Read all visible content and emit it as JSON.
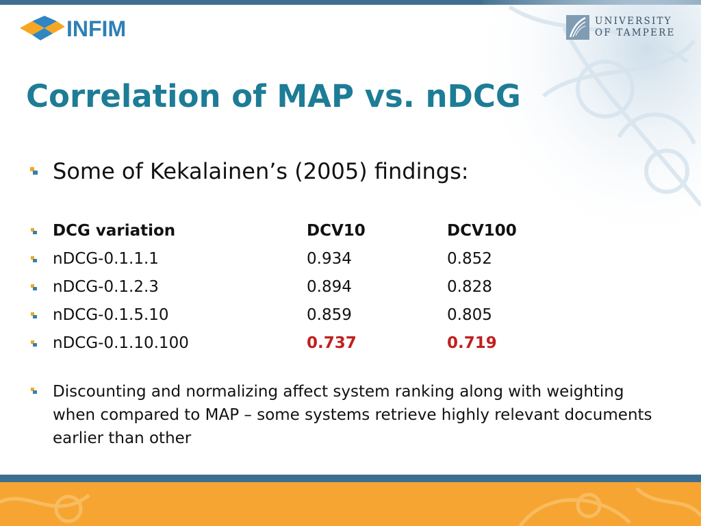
{
  "slide": {
    "title": "Correlation of MAP vs. nDCG",
    "logo_left": "INFIM",
    "logo_right": {
      "line1": "UNIVERSITY",
      "line2": "OF TAMPERE"
    },
    "lead_bullet": "Some of Kekalainen’s (2005) findings:",
    "table": {
      "headers": [
        "DCG variation",
        "DCV10",
        "DCV100"
      ],
      "rows": [
        [
          "nDCG-0.1.1.1",
          "0.934",
          "0.852"
        ],
        [
          "nDCG-0.1.2.3",
          "0.894",
          "0.828"
        ],
        [
          "nDCG-0.1.5.10",
          "0.859",
          "0.805"
        ],
        [
          "nDCG-0.1.10.100",
          "0.737",
          "0.719"
        ]
      ]
    },
    "paragraph": "Discounting and normalizing affect system ranking along with weighting when compared to MAP – some systems retrieve highly relevant documents earlier than other"
  },
  "colors": {
    "title": "#1d7c96",
    "highlight": "#c0201f",
    "bullet_orange": "#f5a623",
    "bullet_blue": "#3b7ea9",
    "top_bar": "#3f6d8f",
    "footer_orange": "#f7a532"
  },
  "icons": {
    "left_logo": "infim-cube-logo-icon",
    "right_logo": "university-of-tampere-emblem-icon",
    "bullet": "square-bullet-icon"
  }
}
